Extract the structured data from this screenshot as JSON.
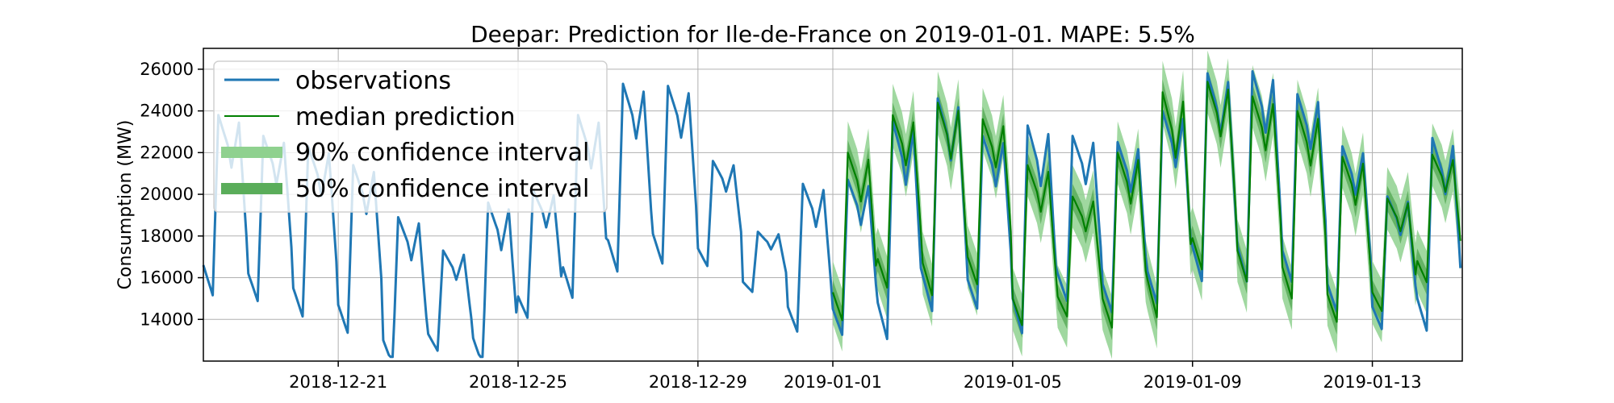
{
  "chart_data": {
    "type": "line",
    "title": "Deepar: Prediction for Ile-de-France on 2019-01-01. MAPE: 5.5%",
    "xlabel": "",
    "ylabel": "Consumption (MW)",
    "x_range": [
      "2018-12-18",
      "2019-01-15"
    ],
    "ylim": [
      12000,
      27000
    ],
    "y_ticks": [
      14000,
      16000,
      18000,
      20000,
      22000,
      24000,
      26000
    ],
    "x_ticks": [
      "2018-12-21",
      "2018-12-25",
      "2018-12-29",
      "2019-01-01",
      "2019-01-05",
      "2019-01-09",
      "2019-01-13"
    ],
    "grid": true,
    "legend_position": "top-left",
    "legend": [
      {
        "label": "observations",
        "kind": "line",
        "color": "#1f77b4"
      },
      {
        "label": "median prediction",
        "kind": "thin-line",
        "color": "#008000"
      },
      {
        "label": "90% confidence interval",
        "kind": "band",
        "color": "#8fd18f"
      },
      {
        "label": "50% confidence interval",
        "kind": "band",
        "color": "#5aad5a"
      }
    ],
    "series": [
      {
        "name": "observations",
        "color": "#1f77b4",
        "start": "2018-12-18",
        "days": 28,
        "daily_peak_mw": [
          23800,
          22800,
          22300,
          21400,
          18900,
          17300,
          19600,
          20200,
          23800,
          25300,
          25200,
          21600,
          18200,
          20500,
          20700,
          23500,
          24600,
          22800,
          23300,
          22800,
          22500,
          24000,
          25800,
          25900,
          24800,
          22300,
          19900,
          22700
        ],
        "daily_min_mw": [
          16600,
          16200,
          15500,
          14700,
          13000,
          13300,
          13100,
          15100,
          16500,
          17800,
          18100,
          17400,
          15800,
          14600,
          14500,
          14800,
          16100,
          15900,
          15000,
          16200,
          15700,
          16300,
          17500,
          17500,
          17300,
          15700,
          14600,
          15000
        ]
      },
      {
        "name": "median prediction",
        "color": "#008000",
        "start": "2019-01-01",
        "days": 14,
        "daily_peak_mw": [
          22000,
          23800,
          24400,
          23600,
          21400,
          19900,
          22000,
          24900,
          25400,
          24700,
          24000,
          21800,
          19800,
          21900
        ],
        "daily_min_mw": [
          15300,
          16900,
          16700,
          17000,
          15000,
          15100,
          15000,
          15900,
          17900,
          17300,
          16500,
          15200,
          15300,
          16800
        ]
      }
    ],
    "confidence_intervals": [
      {
        "level": "90%",
        "half_width_mw": 1500
      },
      {
        "level": "50%",
        "half_width_mw": 600
      }
    ]
  }
}
